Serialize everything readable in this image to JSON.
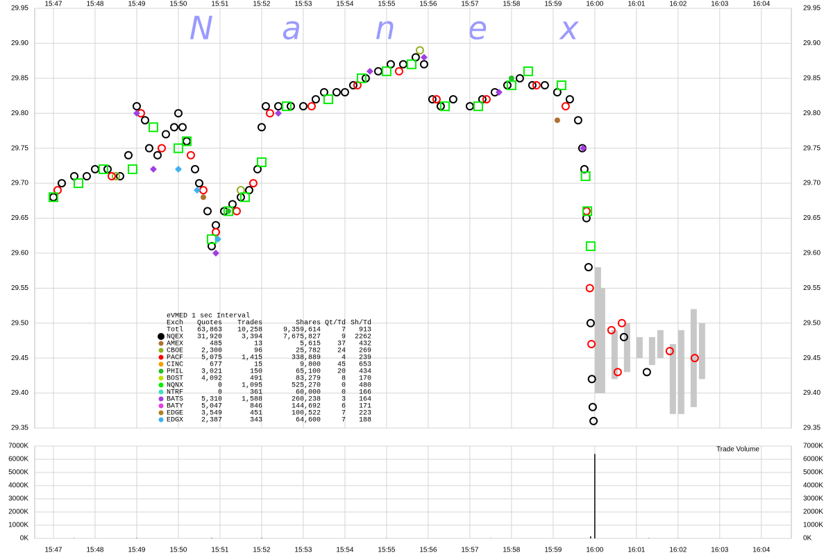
{
  "watermark": [
    "N",
    "a",
    "n",
    "e",
    "x"
  ],
  "chart_data": [
    {
      "type": "price",
      "xlim": [
        946.55,
        964.72
      ],
      "xticks": [
        {
          "value": 947,
          "label": "15:47"
        },
        {
          "value": 948,
          "label": "15:48"
        },
        {
          "value": 949,
          "label": "15:49"
        },
        {
          "value": 950,
          "label": "15:50"
        },
        {
          "value": 951,
          "label": "15:51"
        },
        {
          "value": 952,
          "label": "15:52"
        },
        {
          "value": 953,
          "label": "15:53"
        },
        {
          "value": 954,
          "label": "15:54"
        },
        {
          "value": 955,
          "label": "15:55"
        },
        {
          "value": 956,
          "label": "15:56"
        },
        {
          "value": 957,
          "label": "15:57"
        },
        {
          "value": 958,
          "label": "15:58"
        },
        {
          "value": 959,
          "label": "15:59"
        },
        {
          "value": 960,
          "label": "16:00"
        },
        {
          "value": 961,
          "label": "16:01"
        },
        {
          "value": 962,
          "label": "16:02"
        },
        {
          "value": 963,
          "label": "16:03"
        },
        {
          "value": 964,
          "label": "16:04"
        }
      ],
      "ylim": [
        29.35,
        29.95
      ],
      "yticks": [
        29.35,
        {
          "value": 29.4,
          "label": "29.40"
        },
        29.45,
        {
          "value": 29.5,
          "label": "29.50"
        },
        29.55,
        {
          "value": 29.6,
          "label": "29.60"
        },
        29.65,
        {
          "value": 29.7,
          "label": "29.70"
        },
        29.75,
        {
          "value": 29.8,
          "label": "29.80"
        },
        29.85,
        {
          "value": 29.9,
          "label": "29.90"
        },
        29.95
      ],
      "grid": true,
      "quote_band": {
        "color": "#c8c8c8",
        "x": [
          960.0,
          960.1,
          960.4,
          960.7,
          961.0,
          961.3,
          961.5,
          961.8,
          962.0,
          962.3,
          962.5
        ],
        "low": [
          29.4,
          29.4,
          29.42,
          29.43,
          29.45,
          29.44,
          29.45,
          29.37,
          29.37,
          29.38,
          29.42
        ],
        "high": [
          29.58,
          29.55,
          29.49,
          29.5,
          29.48,
          29.48,
          29.49,
          29.47,
          29.49,
          29.52,
          29.5
        ]
      },
      "series": [
        {
          "name": "NQEX",
          "color": "#000000",
          "marker": "circle-open",
          "x": [
            947.0,
            947.2,
            947.5,
            947.8,
            948.0,
            948.3,
            948.6,
            948.8,
            949.0,
            949.2,
            949.3,
            949.5,
            949.7,
            949.9,
            950.0,
            950.1,
            950.2,
            950.4,
            950.5,
            950.7,
            950.8,
            950.9,
            951.1,
            951.3,
            951.5,
            951.7,
            951.9,
            952.0,
            952.1,
            952.4,
            952.7,
            953.0,
            953.3,
            953.5,
            953.8,
            954.0,
            954.2,
            954.5,
            954.8,
            955.1,
            955.4,
            955.7,
            955.9,
            956.1,
            956.3,
            956.6,
            957.0,
            957.3,
            957.6,
            957.9,
            958.2,
            958.5,
            958.8,
            959.1,
            959.4,
            959.6,
            959.7,
            959.75,
            959.8,
            959.85,
            959.9,
            959.93,
            959.95,
            959.97,
            960.7,
            961.25
          ],
          "values": [
            29.68,
            29.7,
            29.71,
            29.71,
            29.72,
            29.72,
            29.71,
            29.74,
            29.81,
            29.79,
            29.75,
            29.74,
            29.77,
            29.78,
            29.8,
            29.78,
            29.76,
            29.72,
            29.7,
            29.66,
            29.61,
            29.64,
            29.66,
            29.67,
            29.68,
            29.69,
            29.72,
            29.78,
            29.81,
            29.81,
            29.81,
            29.81,
            29.82,
            29.83,
            29.83,
            29.83,
            29.84,
            29.85,
            29.86,
            29.87,
            29.87,
            29.88,
            29.87,
            29.82,
            29.81,
            29.82,
            29.81,
            29.82,
            29.83,
            29.84,
            29.85,
            29.84,
            29.84,
            29.83,
            29.82,
            29.79,
            29.75,
            29.72,
            29.65,
            29.58,
            29.5,
            29.42,
            29.38,
            29.36,
            29.48,
            29.43
          ]
        },
        {
          "name": "AMEX",
          "color": "#b07030",
          "marker": "circle",
          "x": [
            950.6,
            959.1
          ],
          "values": [
            29.68,
            29.79
          ]
        },
        {
          "name": "CBOE",
          "color": "#90b020",
          "marker": "circle-open",
          "x": [
            948.5,
            951.5,
            955.8
          ],
          "values": [
            29.71,
            29.69,
            29.89
          ]
        },
        {
          "name": "PACF",
          "color": "#ff0000",
          "marker": "circle-open",
          "x": [
            947.1,
            948.4,
            949.1,
            949.6,
            950.3,
            950.6,
            950.9,
            951.4,
            951.8,
            952.2,
            953.2,
            954.3,
            955.3,
            956.2,
            957.4,
            958.6,
            959.3,
            959.8,
            959.88,
            959.92,
            960.4,
            960.55,
            960.65,
            961.8,
            962.4
          ],
          "values": [
            29.69,
            29.71,
            29.8,
            29.75,
            29.74,
            29.69,
            29.63,
            29.66,
            29.7,
            29.8,
            29.81,
            29.84,
            29.86,
            29.82,
            29.82,
            29.84,
            29.81,
            29.66,
            29.55,
            29.47,
            29.49,
            29.43,
            29.5,
            29.46,
            29.45
          ]
        },
        {
          "name": "CINC",
          "color": "#f0a000",
          "marker": "circle",
          "x": [],
          "values": []
        },
        {
          "name": "PHIL",
          "color": "#20c020",
          "marker": "circle",
          "x": [
            951.2,
            958.0
          ],
          "values": [
            29.66,
            29.85
          ]
        },
        {
          "name": "BOST",
          "color": "#c0e000",
          "marker": "square-open",
          "x": [],
          "values": []
        },
        {
          "name": "NQNX",
          "color": "#00ee00",
          "marker": "square-open",
          "x": [
            947.0,
            947.6,
            948.2,
            948.9,
            949.4,
            950.0,
            950.2,
            950.8,
            951.2,
            951.6,
            952.0,
            952.6,
            953.6,
            954.4,
            955.0,
            955.6,
            956.4,
            957.2,
            958.0,
            958.4,
            959.2,
            959.78,
            959.82,
            959.9
          ],
          "values": [
            29.68,
            29.7,
            29.72,
            29.72,
            29.78,
            29.75,
            29.76,
            29.62,
            29.66,
            29.68,
            29.73,
            29.81,
            29.82,
            29.85,
            29.86,
            29.87,
            29.81,
            29.81,
            29.84,
            29.86,
            29.84,
            29.71,
            29.66,
            29.61
          ]
        },
        {
          "name": "NTRF",
          "color": "#40e0c0",
          "marker": "square-open",
          "x": [],
          "values": []
        },
        {
          "name": "BATS",
          "color": "#a040e0",
          "marker": "diamond",
          "x": [
            949.0,
            949.4,
            950.9,
            952.4,
            954.6,
            955.9,
            957.7,
            959.72
          ],
          "values": [
            29.8,
            29.72,
            29.6,
            29.8,
            29.86,
            29.88,
            29.83,
            29.75
          ]
        },
        {
          "name": "BATY",
          "color": "#e040e0",
          "marker": "diamond",
          "x": [],
          "values": []
        },
        {
          "name": "EDGE",
          "color": "#b08020",
          "marker": "diamond",
          "x": [],
          "values": []
        },
        {
          "name": "EDGX",
          "color": "#40b0f0",
          "marker": "diamond",
          "x": [
            950.0,
            950.45,
            950.95
          ],
          "values": [
            29.72,
            29.69,
            29.62
          ]
        }
      ]
    },
    {
      "type": "volume",
      "title": "Trade Volume",
      "xlim": [
        946.55,
        964.72
      ],
      "xticks": [
        {
          "value": 947,
          "label": "15:47"
        },
        {
          "value": 948,
          "label": "15:48"
        },
        {
          "value": 949,
          "label": "15:49"
        },
        {
          "value": 950,
          "label": "15:50"
        },
        {
          "value": 951,
          "label": "15:51"
        },
        {
          "value": 952,
          "label": "15:52"
        },
        {
          "value": 953,
          "label": "15:53"
        },
        {
          "value": 954,
          "label": "15:54"
        },
        {
          "value": 955,
          "label": "15:55"
        },
        {
          "value": 956,
          "label": "15:56"
        },
        {
          "value": 957,
          "label": "15:57"
        },
        {
          "value": 958,
          "label": "15:58"
        },
        {
          "value": 959,
          "label": "15:59"
        },
        {
          "value": 960,
          "label": "16:00"
        },
        {
          "value": 961,
          "label": "16:01"
        },
        {
          "value": 962,
          "label": "16:02"
        },
        {
          "value": 963,
          "label": "16:03"
        },
        {
          "value": 964,
          "label": "16:04"
        }
      ],
      "ylim": [
        0,
        7000000
      ],
      "yticks": [
        {
          "value": 0,
          "label": "0K"
        },
        {
          "value": 1000000,
          "label": "1000K"
        },
        {
          "value": 2000000,
          "label": "2000K"
        },
        {
          "value": 3000000,
          "label": "3000K"
        },
        {
          "value": 4000000,
          "label": "4000K"
        },
        {
          "value": 5000000,
          "label": "5000K"
        },
        {
          "value": 6000000,
          "label": "6000K"
        },
        {
          "value": 7000000,
          "label": "7000K"
        }
      ],
      "grid": true,
      "series": [
        {
          "color": "#000000",
          "x": [
            947.5,
            949.0,
            950.8,
            952.0,
            955.0,
            957.5,
            959.9,
            960.0,
            961.3,
            962.0
          ],
          "values": [
            15000,
            20000,
            30000,
            25000,
            10000,
            10000,
            150000,
            6400000,
            20000,
            10000
          ]
        }
      ]
    }
  ],
  "stats_table": {
    "title": "eVMED 1 sec Interval",
    "columns": [
      "Exch",
      "Quotes",
      "Trades",
      "Shares",
      "Qt/Td",
      "Sh/Td"
    ],
    "total_label": "Totl",
    "total": [
      "63,863",
      "10,258",
      "9,359,614",
      "7",
      "913"
    ],
    "rows": [
      [
        "31,920",
        "3,394",
        "7,675,827",
        "9",
        "2262"
      ],
      [
        "485",
        "13",
        "5,615",
        "37",
        "432"
      ],
      [
        "2,300",
        "96",
        "25,782",
        "24",
        "269"
      ],
      [
        "5,075",
        "1,415",
        "338,889",
        "4",
        "239"
      ],
      [
        "677",
        "15",
        "9,800",
        "45",
        "653"
      ],
      [
        "3,021",
        "150",
        "65,100",
        "20",
        "434"
      ],
      [
        "4,092",
        "491",
        "83,279",
        "8",
        "170"
      ],
      [
        "0",
        "1,095",
        "525,270",
        "0",
        "480"
      ],
      [
        "0",
        "361",
        "60,000",
        "0",
        "166"
      ],
      [
        "5,310",
        "1,588",
        "260,238",
        "3",
        "164"
      ],
      [
        "5,047",
        "846",
        "144,692",
        "6",
        "171"
      ],
      [
        "3,549",
        "451",
        "100,522",
        "7",
        "223"
      ],
      [
        "2,387",
        "343",
        "64,600",
        "7",
        "188"
      ]
    ]
  }
}
